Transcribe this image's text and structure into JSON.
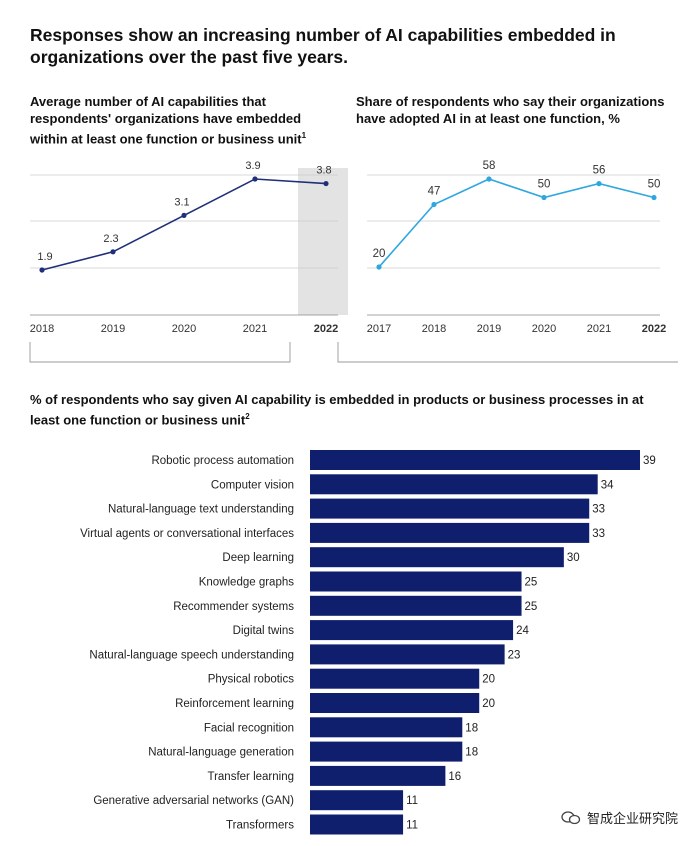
{
  "title": "Responses show an increasing number of AI capabilities embedded in organizations over the past five years.",
  "left_subtitle": "Average number of AI capabilities that respondents' organizations have embedded within at least one function or business unit",
  "left_subtitle_note": "1",
  "right_subtitle": "Share of respondents who say their organizations have adopted AI in at least one function, %",
  "bottom_subtitle": "% of respondents who say given AI capability is embedded in products or business processes in at least one function or business unit",
  "bottom_subtitle_note": "2",
  "watermark": "智成企业研究院",
  "colors": {
    "dark_navy": "#1f2f7a",
    "bar_navy": "#0f1f6e",
    "light_blue": "#2ea7e0",
    "highlight": "#e3e3e3",
    "grid": "#cccccc"
  },
  "chart_data": [
    {
      "type": "line",
      "x": [
        "2018",
        "2019",
        "2020",
        "2021",
        "2022"
      ],
      "series": [
        {
          "values": [
            1.9,
            2.3,
            3.1,
            3.9,
            3.8
          ]
        }
      ],
      "labels": [
        "1.9",
        "2.3",
        "3.1",
        "3.9",
        "3.8"
      ],
      "highlight_category": "2022",
      "ylim": [
        1.5,
        3.9
      ],
      "grid": true
    },
    {
      "type": "line",
      "x": [
        "2017",
        "2018",
        "2019",
        "2020",
        "2021",
        "2022"
      ],
      "series": [
        {
          "values": [
            20,
            47,
            58,
            50,
            56,
            50
          ]
        }
      ],
      "labels": [
        "20",
        "47",
        "58",
        "50",
        "56",
        "50"
      ],
      "bold_category": "2022",
      "ylim": [
        20,
        58
      ],
      "grid": true
    },
    {
      "type": "bar",
      "orientation": "horizontal",
      "categories": [
        "Robotic process automation",
        "Computer vision",
        "Natural-language text understanding",
        "Virtual agents or conversational interfaces",
        "Deep learning",
        "Knowledge graphs",
        "Recommender systems",
        "Digital twins",
        "Natural-language speech understanding",
        "Physical robotics",
        "Reinforcement learning",
        "Facial recognition",
        "Natural-language generation",
        "Transfer learning",
        "Generative adversarial networks (GAN)",
        "Transformers"
      ],
      "values": [
        39,
        34,
        33,
        33,
        30,
        25,
        25,
        24,
        23,
        20,
        20,
        18,
        18,
        16,
        11,
        11
      ],
      "xlim": [
        0,
        39
      ]
    }
  ]
}
